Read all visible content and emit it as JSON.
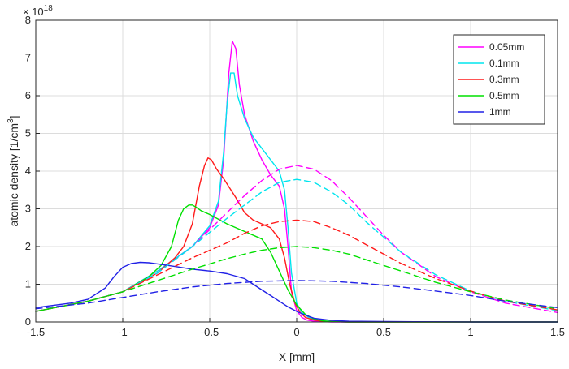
{
  "chart_data": {
    "type": "line",
    "xlabel": "X [mm]",
    "ylabel": "atomic density [1/cm",
    "ylabel_sup": "3",
    "ylabel_end": "]",
    "y_exponent_base": "× 10",
    "y_exponent_power": "18",
    "xlim": [
      -1.5,
      1.5
    ],
    "ylim": [
      0,
      8
    ],
    "xticks": [
      -1.5,
      -1,
      -0.5,
      0,
      0.5,
      1,
      1.5
    ],
    "xtick_labels": [
      "-1.5",
      "-1",
      "-0.5",
      "0",
      "0.5",
      "1",
      "1.5"
    ],
    "yticks": [
      0,
      1,
      2,
      3,
      4,
      5,
      6,
      7,
      8
    ],
    "ytick_labels": [
      "0",
      "1",
      "2",
      "3",
      "4",
      "5",
      "6",
      "7",
      "8"
    ],
    "grid": true,
    "legend_position": "top-right",
    "series": [
      {
        "name": "0.05mm",
        "color": "#ff00ff",
        "style": "solid",
        "x": [
          -1.5,
          -1.2,
          -1.0,
          -0.8,
          -0.6,
          -0.5,
          -0.45,
          -0.42,
          -0.39,
          -0.37,
          -0.35,
          -0.33,
          -0.3,
          -0.25,
          -0.2,
          -0.15,
          -0.1,
          -0.07,
          -0.05,
          -0.03,
          0.0,
          0.03,
          0.06,
          0.1,
          0.15,
          0.2,
          0.3,
          0.5,
          1.0,
          1.5
        ],
        "y": [
          0.28,
          0.55,
          0.8,
          1.35,
          2.0,
          2.5,
          3.1,
          4.3,
          6.6,
          7.45,
          7.25,
          6.3,
          5.5,
          4.8,
          4.3,
          3.9,
          3.6,
          3.0,
          2.0,
          0.8,
          0.3,
          0.12,
          0.05,
          0.02,
          0.01,
          0.0,
          0.0,
          0.0,
          0.0,
          0.0
        ]
      },
      {
        "name": "0.1mm",
        "color": "#00e5ee",
        "style": "solid",
        "x": [
          -1.5,
          -1.2,
          -1.0,
          -0.8,
          -0.6,
          -0.5,
          -0.45,
          -0.42,
          -0.4,
          -0.38,
          -0.36,
          -0.34,
          -0.3,
          -0.25,
          -0.2,
          -0.15,
          -0.1,
          -0.07,
          -0.05,
          -0.03,
          0.0,
          0.03,
          0.07,
          0.1,
          0.15,
          0.2,
          0.3,
          0.5,
          1.0,
          1.5
        ],
        "y": [
          0.28,
          0.55,
          0.8,
          1.35,
          2.0,
          2.55,
          3.2,
          4.5,
          5.8,
          6.6,
          6.6,
          6.0,
          5.4,
          4.9,
          4.6,
          4.3,
          4.0,
          3.5,
          2.5,
          1.3,
          0.5,
          0.25,
          0.12,
          0.06,
          0.03,
          0.01,
          0.0,
          0.0,
          0.0,
          0.0
        ]
      },
      {
        "name": "0.3mm",
        "color": "#ff1a1a",
        "style": "solid",
        "x": [
          -1.5,
          -1.2,
          -1.0,
          -0.8,
          -0.7,
          -0.65,
          -0.6,
          -0.56,
          -0.53,
          -0.51,
          -0.49,
          -0.46,
          -0.42,
          -0.35,
          -0.3,
          -0.25,
          -0.2,
          -0.15,
          -0.1,
          -0.07,
          -0.04,
          -0.01,
          0.02,
          0.05,
          0.1,
          0.15,
          0.2,
          0.3,
          0.5,
          1.0,
          1.5
        ],
        "y": [
          0.28,
          0.55,
          0.8,
          1.3,
          1.7,
          2.0,
          2.6,
          3.6,
          4.15,
          4.35,
          4.3,
          4.05,
          3.8,
          3.3,
          2.9,
          2.7,
          2.6,
          2.5,
          2.2,
          1.7,
          1.0,
          0.5,
          0.25,
          0.12,
          0.05,
          0.02,
          0.01,
          0.0,
          0.0,
          0.0,
          0.0
        ]
      },
      {
        "name": "0.5mm",
        "color": "#00e000",
        "style": "solid",
        "x": [
          -1.5,
          -1.2,
          -1.0,
          -0.85,
          -0.78,
          -0.72,
          -0.68,
          -0.65,
          -0.62,
          -0.6,
          -0.58,
          -0.55,
          -0.5,
          -0.4,
          -0.3,
          -0.2,
          -0.15,
          -0.1,
          -0.05,
          0.0,
          0.05,
          0.1,
          0.15,
          0.2,
          0.3,
          0.5,
          1.0,
          1.5
        ],
        "y": [
          0.28,
          0.55,
          0.8,
          1.2,
          1.5,
          2.0,
          2.7,
          3.0,
          3.1,
          3.1,
          3.05,
          2.95,
          2.85,
          2.6,
          2.4,
          2.2,
          1.85,
          1.35,
          0.85,
          0.45,
          0.2,
          0.08,
          0.03,
          0.01,
          0.0,
          0.0,
          0.0,
          0.0
        ]
      },
      {
        "name": "1mm",
        "color": "#2121e6",
        "style": "solid",
        "x": [
          -1.5,
          -1.3,
          -1.2,
          -1.1,
          -1.05,
          -1.0,
          -0.95,
          -0.9,
          -0.85,
          -0.8,
          -0.7,
          -0.6,
          -0.5,
          -0.4,
          -0.3,
          -0.25,
          -0.2,
          -0.15,
          -0.1,
          -0.05,
          0.0,
          0.05,
          0.1,
          0.2,
          0.3,
          0.5,
          1.0,
          1.5
        ],
        "y": [
          0.38,
          0.5,
          0.6,
          0.9,
          1.2,
          1.45,
          1.55,
          1.58,
          1.57,
          1.54,
          1.47,
          1.4,
          1.35,
          1.28,
          1.15,
          1.0,
          0.85,
          0.7,
          0.55,
          0.4,
          0.28,
          0.18,
          0.1,
          0.04,
          0.02,
          0.01,
          0.0,
          0.0
        ]
      },
      {
        "name": "",
        "color": "#ff00ff",
        "style": "dashed",
        "x": [
          -1.5,
          -1.2,
          -1.0,
          -0.8,
          -0.6,
          -0.4,
          -0.3,
          -0.2,
          -0.1,
          0.0,
          0.1,
          0.2,
          0.3,
          0.4,
          0.5,
          0.6,
          0.8,
          1.0,
          1.2,
          1.5
        ],
        "y": [
          0.28,
          0.55,
          0.8,
          1.3,
          2.0,
          2.9,
          3.35,
          3.75,
          4.05,
          4.15,
          4.05,
          3.75,
          3.3,
          2.8,
          2.3,
          1.85,
          1.2,
          0.8,
          0.5,
          0.25
        ]
      },
      {
        "name": "",
        "color": "#00e5ee",
        "style": "dashed",
        "x": [
          -1.5,
          -1.2,
          -1.0,
          -0.8,
          -0.6,
          -0.4,
          -0.3,
          -0.2,
          -0.1,
          0.0,
          0.1,
          0.2,
          0.3,
          0.4,
          0.5,
          0.6,
          0.8,
          1.0,
          1.2,
          1.5
        ],
        "y": [
          0.28,
          0.55,
          0.8,
          1.3,
          2.0,
          2.75,
          3.1,
          3.45,
          3.7,
          3.78,
          3.7,
          3.45,
          3.1,
          2.65,
          2.25,
          1.85,
          1.25,
          0.82,
          0.55,
          0.3
        ]
      },
      {
        "name": "",
        "color": "#ff1a1a",
        "style": "dashed",
        "x": [
          -1.5,
          -1.2,
          -1.0,
          -0.8,
          -0.6,
          -0.4,
          -0.3,
          -0.2,
          -0.1,
          0.0,
          0.1,
          0.2,
          0.3,
          0.4,
          0.5,
          0.6,
          0.8,
          1.0,
          1.2,
          1.5
        ],
        "y": [
          0.28,
          0.55,
          0.8,
          1.25,
          1.7,
          2.1,
          2.35,
          2.55,
          2.66,
          2.7,
          2.66,
          2.5,
          2.3,
          2.05,
          1.8,
          1.55,
          1.15,
          0.82,
          0.55,
          0.32
        ]
      },
      {
        "name": "",
        "color": "#00e000",
        "style": "dashed",
        "x": [
          -1.5,
          -1.2,
          -1.0,
          -0.8,
          -0.6,
          -0.4,
          -0.3,
          -0.2,
          -0.1,
          0.0,
          0.1,
          0.2,
          0.3,
          0.4,
          0.5,
          0.6,
          0.8,
          1.0,
          1.2,
          1.5
        ],
        "y": [
          0.28,
          0.55,
          0.8,
          1.1,
          1.4,
          1.68,
          1.8,
          1.9,
          1.97,
          2.0,
          1.97,
          1.9,
          1.8,
          1.65,
          1.5,
          1.35,
          1.05,
          0.8,
          0.58,
          0.35
        ]
      },
      {
        "name": "",
        "color": "#2121e6",
        "style": "dashed",
        "x": [
          -1.5,
          -1.2,
          -1.0,
          -0.8,
          -0.6,
          -0.4,
          -0.2,
          0.0,
          0.2,
          0.4,
          0.6,
          0.8,
          1.0,
          1.2,
          1.5
        ],
        "y": [
          0.35,
          0.5,
          0.65,
          0.8,
          0.93,
          1.02,
          1.08,
          1.1,
          1.08,
          1.02,
          0.93,
          0.82,
          0.7,
          0.55,
          0.38
        ]
      }
    ]
  }
}
